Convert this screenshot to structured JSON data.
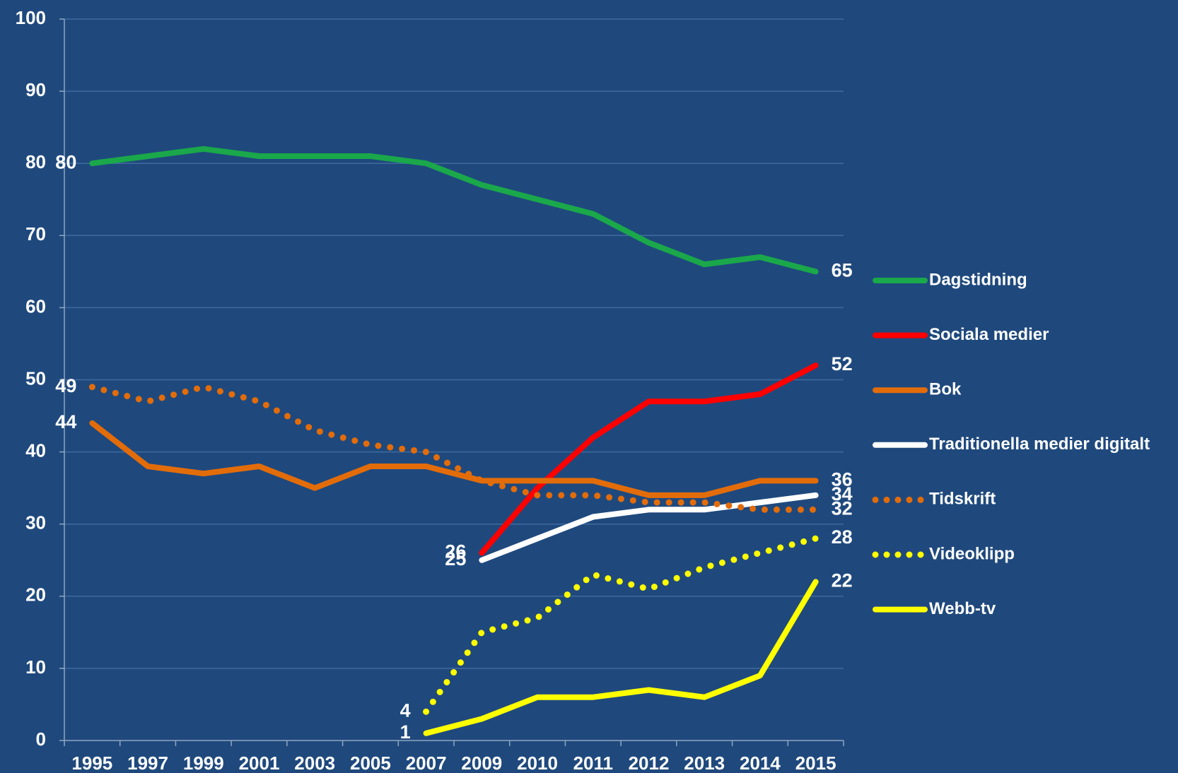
{
  "chart_data": {
    "type": "line",
    "categories": [
      "1995",
      "1997",
      "1999",
      "2001",
      "2003",
      "2005",
      "2007",
      "2009",
      "2010",
      "2011",
      "2012",
      "2013",
      "2014",
      "2015"
    ],
    "series": [
      {
        "name": "Dagstidning",
        "color": "#1aa84a",
        "style": "solid",
        "values": [
          80,
          81,
          82,
          81,
          81,
          81,
          80,
          77,
          75,
          73,
          69,
          66,
          67,
          65
        ]
      },
      {
        "name": "Sociala medier",
        "color": "#ff0000",
        "style": "solid",
        "values": [
          null,
          null,
          null,
          null,
          null,
          null,
          null,
          26,
          35,
          42,
          47,
          47,
          48,
          52
        ]
      },
      {
        "name": "Bok",
        "color": "#e36c0a",
        "style": "solid",
        "values": [
          44,
          38,
          37,
          38,
          35,
          38,
          38,
          36,
          36,
          36,
          34,
          34,
          36,
          36
        ]
      },
      {
        "name": "Traditionella medier digitalt",
        "color": "#ffffff",
        "style": "solid",
        "values": [
          null,
          null,
          null,
          null,
          null,
          null,
          null,
          25,
          28,
          31,
          32,
          32,
          33,
          34
        ]
      },
      {
        "name": "Tidskrift",
        "color": "#e36c0a",
        "style": "dotted",
        "values": [
          49,
          47,
          49,
          47,
          43,
          41,
          40,
          36,
          34,
          34,
          33,
          33,
          32,
          32
        ]
      },
      {
        "name": "Videoklipp",
        "color": "#ffff00",
        "style": "dotted",
        "values": [
          null,
          null,
          null,
          null,
          null,
          null,
          4,
          15,
          17,
          23,
          21,
          24,
          26,
          28
        ]
      },
      {
        "name": "Webb-tv",
        "color": "#ffff00",
        "style": "solid",
        "values": [
          null,
          null,
          null,
          null,
          null,
          null,
          1,
          3,
          6,
          6,
          7,
          6,
          9,
          22
        ]
      }
    ],
    "ylim": [
      0,
      100
    ],
    "yticks": [
      0,
      10,
      20,
      30,
      40,
      50,
      60,
      70,
      80,
      90,
      100
    ],
    "grid": true,
    "legend": "right"
  }
}
